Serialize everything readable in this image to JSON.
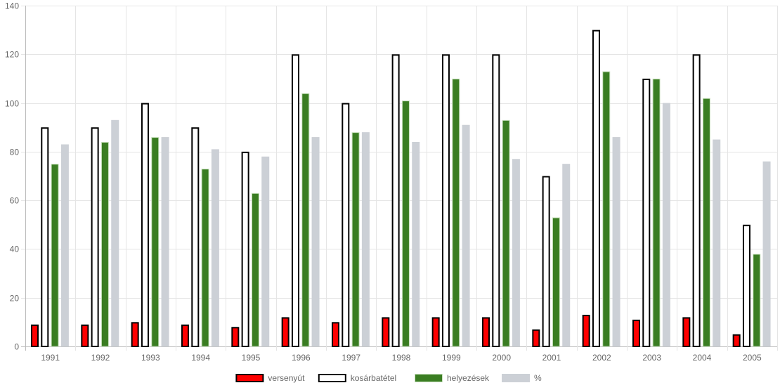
{
  "chart_data": {
    "type": "bar",
    "categories": [
      "1991",
      "1992",
      "1993",
      "1994",
      "1995",
      "1996",
      "1997",
      "1998",
      "1999",
      "2000",
      "2001",
      "2002",
      "2003",
      "2004",
      "2005"
    ],
    "series": [
      {
        "name": "versenyút",
        "values": [
          9,
          9,
          10,
          9,
          8,
          12,
          10,
          12,
          12,
          12,
          7,
          13,
          11,
          12,
          5
        ],
        "fill": "#ff0000",
        "stroke": "#000000"
      },
      {
        "name": "kosárbatétel",
        "values": [
          90,
          90,
          100,
          90,
          80,
          120,
          100,
          120,
          120,
          120,
          70,
          130,
          110,
          120,
          50
        ],
        "fill": "#ffffff",
        "stroke": "#000000"
      },
      {
        "name": "helyezések",
        "values": [
          75,
          84,
          86,
          73,
          63,
          104,
          88,
          101,
          110,
          93,
          53,
          113,
          110,
          102,
          38
        ],
        "fill": "#3a7d22",
        "stroke": "#c8e0bd"
      },
      {
        "name": "%",
        "values": [
          83,
          93,
          86,
          81,
          78,
          86,
          88,
          84,
          91,
          77,
          75,
          86,
          100,
          85,
          76
        ],
        "fill": "#ccd0d6",
        "stroke": "#ccd0d6"
      }
    ],
    "ylim": [
      0,
      140
    ],
    "yticks": [
      0,
      20,
      40,
      60,
      80,
      100,
      120,
      140
    ],
    "grid": true,
    "legend_position": "bottom"
  }
}
